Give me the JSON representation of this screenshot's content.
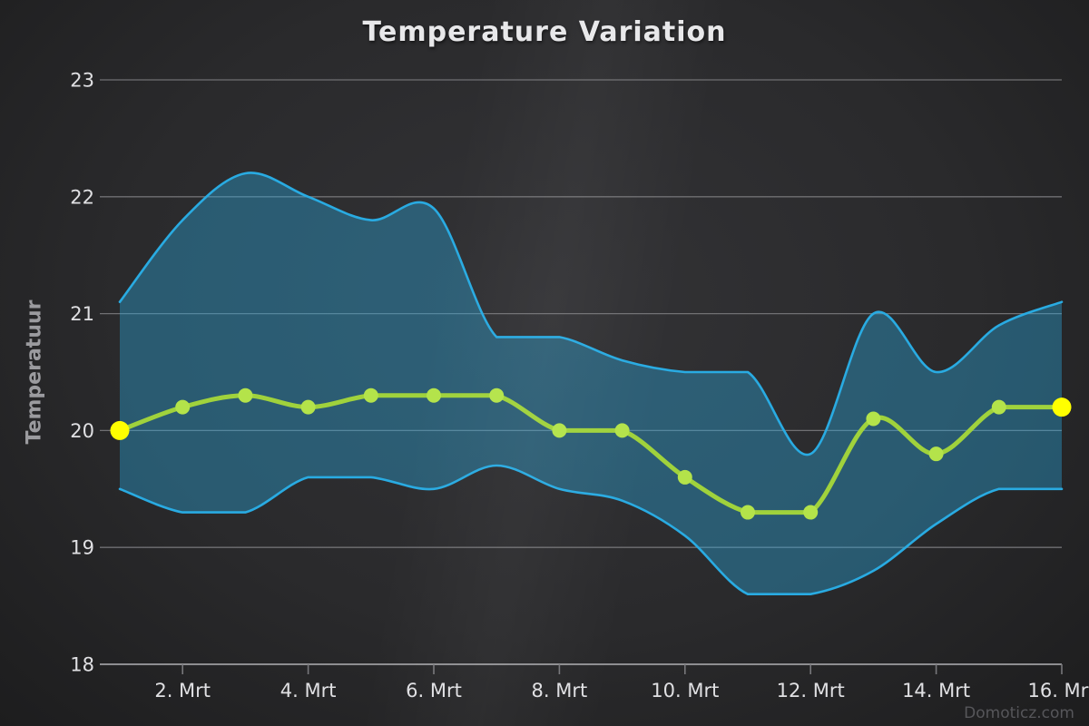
{
  "title": "Temperature Variation",
  "watermark": "Domoticz.com",
  "colors": {
    "background_center": "#333336",
    "background_edge": "#1d1d1e",
    "title_text": "#e8e8ea",
    "axis_title_text": "#9b9b9f",
    "tick_label_text": "#e0e0e3",
    "grid_line": "#707073",
    "axis_line": "#8e8e91",
    "tick_mark": "#77777b",
    "range_band_stroke": "#29abe2",
    "range_band_fill": "rgba(41,171,226,0.38)",
    "avg_line": "#a0d23c",
    "avg_marker": "#b4e34a",
    "endpoint_marker": "#ffff00",
    "watermark_text": "#56565a"
  },
  "chart_data": {
    "type": "line",
    "subtype": "spline-with-arearange",
    "title": "Temperature Variation",
    "xlabel": "",
    "ylabel": "Temperatuur",
    "grid": true,
    "legend": "none",
    "ylim": [
      18,
      23
    ],
    "yticks": [
      23,
      22,
      21,
      20,
      19,
      18
    ],
    "x_days": [
      1,
      2,
      3,
      4,
      5,
      6,
      7,
      8,
      9,
      10,
      11,
      12,
      13,
      14,
      15,
      16
    ],
    "x_range_days": [
      1,
      16
    ],
    "x_ticks": [
      {
        "day": 2,
        "label": "2. Mrt"
      },
      {
        "day": 4,
        "label": "4. Mrt"
      },
      {
        "day": 6,
        "label": "6. Mrt"
      },
      {
        "day": 8,
        "label": "8. Mrt"
      },
      {
        "day": 10,
        "label": "10. Mrt"
      },
      {
        "day": 12,
        "label": "12. Mrt"
      },
      {
        "day": 14,
        "label": "14. Mrt"
      },
      {
        "day": 16,
        "label": "16. Mrt"
      }
    ],
    "series": [
      {
        "name": "temperature-average",
        "style": "spline-markers",
        "values": [
          20.0,
          20.2,
          20.3,
          20.2,
          20.3,
          20.3,
          20.3,
          20.0,
          20.0,
          19.6,
          19.3,
          19.3,
          20.1,
          19.8,
          20.2,
          20.2
        ],
        "endpoint_marker_color_note": "first and last markers highlighted yellow"
      },
      {
        "name": "temperature-range-max",
        "style": "arearange-upper",
        "values": [
          21.1,
          21.8,
          22.2,
          22.0,
          21.8,
          21.9,
          20.8,
          20.8,
          20.6,
          20.5,
          20.5,
          19.8,
          21.0,
          20.5,
          20.9,
          21.1
        ]
      },
      {
        "name": "temperature-range-min",
        "style": "arearange-lower",
        "values": [
          19.5,
          19.3,
          19.3,
          19.6,
          19.6,
          19.5,
          19.7,
          19.5,
          19.4,
          19.1,
          18.6,
          18.6,
          18.8,
          19.2,
          19.5,
          19.5
        ]
      }
    ]
  }
}
